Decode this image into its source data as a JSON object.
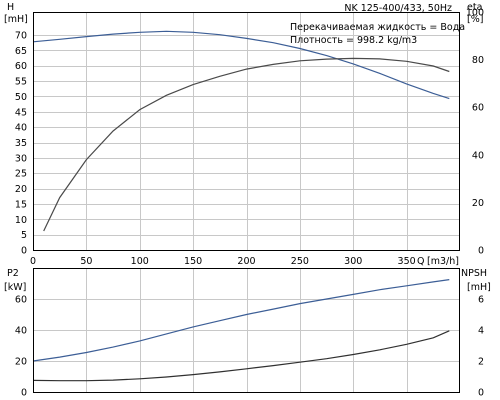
{
  "chart_data": {
    "title": "NK 125-400/433, 50Hz",
    "annotations": [
      "Перекачиваемая жидкость = Вода",
      "Плотность = 998.2 kg/m3"
    ],
    "xlabel": "Q",
    "xunit": "[m3/h]",
    "x_ticks": [
      0,
      50,
      100,
      150,
      200,
      250,
      300,
      350
    ],
    "xlim": [
      0,
      400
    ],
    "grid": true,
    "panels": [
      {
        "type": "line",
        "left_axis": {
          "label": "H",
          "unit": "[mH]",
          "ticks": [
            70,
            65,
            60,
            55,
            50,
            45,
            40,
            35,
            30,
            25,
            20,
            15,
            10,
            5,
            0
          ],
          "lim": [
            0,
            77.5
          ]
        },
        "right_axis": {
          "label": "eta",
          "unit": "[%]",
          "ticks": [
            100,
            80,
            60,
            40,
            20,
            0
          ],
          "lim": [
            0,
            100
          ]
        },
        "series": [
          {
            "axis": "left",
            "color": "#3c5e96",
            "x": [
              0,
              25,
              50,
              75,
              100,
              125,
              150,
              175,
              200,
              225,
              250,
              275,
              300,
              325,
              350,
              375,
              390
            ],
            "y": [
              67.8,
              68.6,
              69.5,
              70.3,
              70.9,
              71.2,
              70.9,
              70.1,
              68.9,
              67.5,
              65.6,
              63.3,
              60.6,
              57.5,
              54.1,
              51.0,
              49.3
            ]
          },
          {
            "axis": "right",
            "color": "#4a4a4a",
            "x": [
              10,
              25,
              50,
              75,
              100,
              125,
              150,
              175,
              200,
              225,
              250,
              275,
              300,
              325,
              350,
              375,
              390
            ],
            "y": [
              8,
              22,
              38,
              50,
              59,
              65,
              69.5,
              73,
              76,
              78,
              79.5,
              80.2,
              80.5,
              80.3,
              79.3,
              77.3,
              75
            ]
          }
        ]
      },
      {
        "type": "line",
        "left_axis": {
          "label": "P2",
          "unit": "[kW]",
          "ticks": [
            60,
            40,
            20,
            0
          ],
          "lim": [
            0,
            80
          ]
        },
        "right_axis": {
          "label": "NPSH",
          "unit": "[mH]",
          "ticks": [
            6,
            4,
            2,
            0
          ],
          "lim": [
            0,
            8
          ]
        },
        "series": [
          {
            "axis": "left",
            "color": "#3c5e96",
            "x": [
              0,
              25,
              50,
              75,
              100,
              125,
              150,
              175,
              200,
              225,
              250,
              275,
              300,
              325,
              350,
              375,
              390
            ],
            "y": [
              20,
              22.5,
              25.5,
              29,
              33,
              37.5,
              42,
              46,
              50,
              53.5,
              57,
              60,
              63,
              66,
              68.5,
              71,
              72.5
            ]
          },
          {
            "axis": "right",
            "color": "#303030",
            "x": [
              0,
              25,
              50,
              75,
              100,
              125,
              150,
              175,
              200,
              225,
              250,
              275,
              300,
              325,
              350,
              375,
              390
            ],
            "y": [
              0.75,
              0.73,
              0.73,
              0.77,
              0.85,
              0.97,
              1.12,
              1.3,
              1.5,
              1.7,
              1.92,
              2.15,
              2.42,
              2.72,
              3.08,
              3.5,
              3.95
            ]
          }
        ]
      }
    ]
  }
}
